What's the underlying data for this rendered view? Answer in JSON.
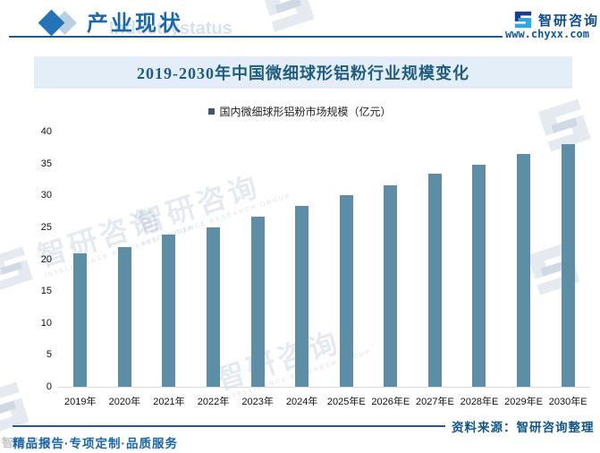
{
  "header": {
    "section_title": "产业现状",
    "watermark_en": "Industrystatus",
    "brand_name": "智研咨询",
    "brand_url": "www.chyxx.com"
  },
  "chart": {
    "title": "2019-2030年中国微细球形铝粉行业规模变化",
    "legend_label": "国内微细球形铝粉市场规模（亿元）"
  },
  "chart_data": {
    "type": "bar",
    "title": "2019-2030年中国微细球形铝粉行业规模变化",
    "series_name": "国内微细球形铝粉市场规模（亿元）",
    "categories": [
      "2019年",
      "2020年",
      "2021年",
      "2022年",
      "2023年",
      "2024年",
      "2025年E",
      "2026年E",
      "2027年E",
      "2028年E",
      "2029年E",
      "2030年E"
    ],
    "values": [
      20.9,
      21.9,
      23.8,
      25.0,
      26.7,
      28.4,
      30.0,
      31.6,
      33.4,
      34.8,
      36.5,
      38.1
    ],
    "ylim": [
      0,
      40
    ],
    "yticks": [
      0,
      5,
      10,
      15,
      20,
      25,
      30,
      35,
      40
    ],
    "grid": false,
    "legend_position": "top-center",
    "bar_color": "#5d8ea6",
    "legend_marker_color": "#44546a"
  },
  "footer": {
    "source": "资料来源：智研咨询整理",
    "services": "精品报告·专项定制·品质服务"
  },
  "watermarks": {
    "cn": "智研咨询",
    "en": "INTELLIGENCE RESEARCH GROUP"
  },
  "colors": {
    "accent_blue": "#1a67ad",
    "title_bg": "#e4eef8",
    "title_text": "#1e5c80",
    "line_navy": "#1f5c8b",
    "bar_teal": "#5d8ea6"
  }
}
